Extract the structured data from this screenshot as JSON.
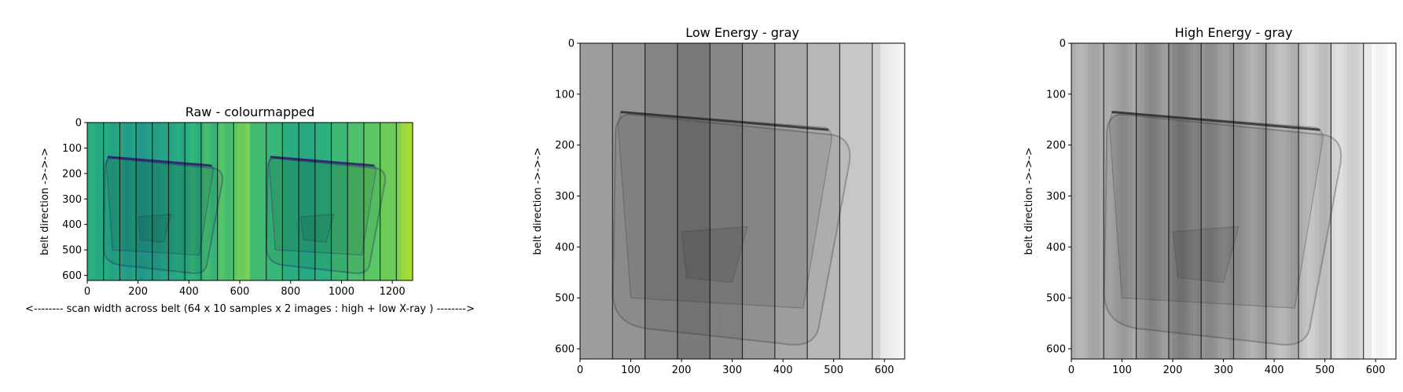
{
  "chart_data": [
    {
      "type": "heatmap",
      "title": "Raw - colourmapped",
      "xlabel": "<-------- scan width across belt (64 x 10 samples x 2 images : high + low X-ray ) -------->",
      "ylabel": "belt direction ->->->",
      "xlim": [
        0,
        1280
      ],
      "ylim": [
        620,
        0
      ],
      "xticks": [
        0,
        200,
        400,
        600,
        800,
        1000,
        1200
      ],
      "yticks": [
        0,
        100,
        200,
        300,
        400,
        500,
        600
      ],
      "colormap": "viridis",
      "detector_boundaries": [
        64,
        128,
        192,
        256,
        320,
        384,
        448,
        512,
        576,
        704,
        768,
        832,
        896,
        960,
        1024,
        1088,
        1152,
        1216
      ]
    },
    {
      "type": "heatmap",
      "title": "Low Energy - gray",
      "ylabel": "belt direction ->->->",
      "xlim": [
        0,
        640
      ],
      "ylim": [
        620,
        0
      ],
      "xticks": [
        0,
        100,
        200,
        300,
        400,
        500,
        600
      ],
      "yticks": [
        0,
        100,
        200,
        300,
        400,
        500,
        600
      ],
      "colormap": "gray",
      "detector_boundaries": [
        64,
        128,
        192,
        256,
        320,
        384,
        448,
        512,
        576
      ]
    },
    {
      "type": "heatmap",
      "title": "High Energy - gray",
      "ylabel": "belt direction ->->->",
      "xlim": [
        0,
        640
      ],
      "ylim": [
        620,
        0
      ],
      "xticks": [
        0,
        100,
        200,
        300,
        400,
        500,
        600
      ],
      "yticks": [
        0,
        100,
        200,
        300,
        400,
        500,
        600
      ],
      "colormap": "gray",
      "detector_boundaries": [
        64,
        128,
        192,
        256,
        320,
        384,
        448,
        512,
        576
      ]
    }
  ]
}
